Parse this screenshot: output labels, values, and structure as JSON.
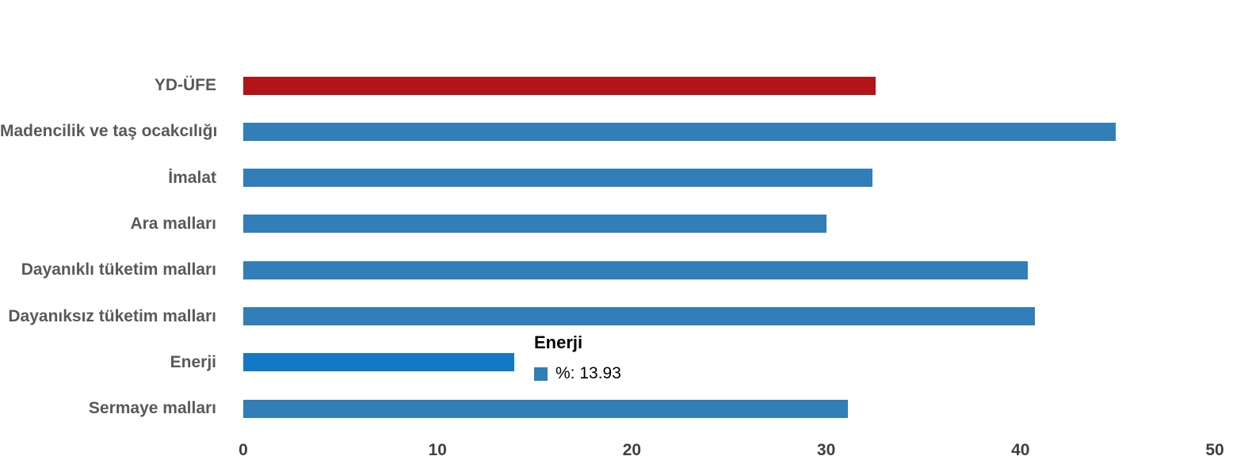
{
  "chart_data": {
    "type": "bar",
    "orientation": "horizontal",
    "title": "",
    "xlabel": "",
    "ylabel": "",
    "categories": [
      "YD-ÜFE",
      "Madencilik ve taş ocakcılığı",
      "İmalat",
      "Ara malları",
      "Dayanıklı tüketim malları",
      "Dayanıksız tüketim malları",
      "Enerji",
      "Sermaye malları"
    ],
    "series": [
      {
        "name": "%",
        "values": [
          32.53,
          44.9,
          32.37,
          30.0,
          40.36,
          40.74,
          13.93,
          31.13
        ]
      }
    ],
    "bar_colors": [
      "#b11419",
      "#317eb9",
      "#317eb9",
      "#317eb9",
      "#317eb9",
      "#317eb9",
      "#1478c8",
      "#317eb9"
    ],
    "highlighted_category": "Enerji",
    "xlim": [
      0,
      50
    ],
    "x_ticks": [
      "0",
      "10",
      "20",
      "30",
      "40",
      "50"
    ],
    "grid": false,
    "legend": false
  },
  "tooltip": {
    "title": "Enerji",
    "series_name": "%",
    "value": "13.93",
    "text": "%: 13.93",
    "marker_color": "#317eb9"
  },
  "colors": {
    "background": "#ffffff",
    "category_label": "#595959",
    "axis_label": "#3f3f3f",
    "bar_default": "#317eb9",
    "bar_accent": "#b11419",
    "bar_highlight": "#1478c8"
  }
}
